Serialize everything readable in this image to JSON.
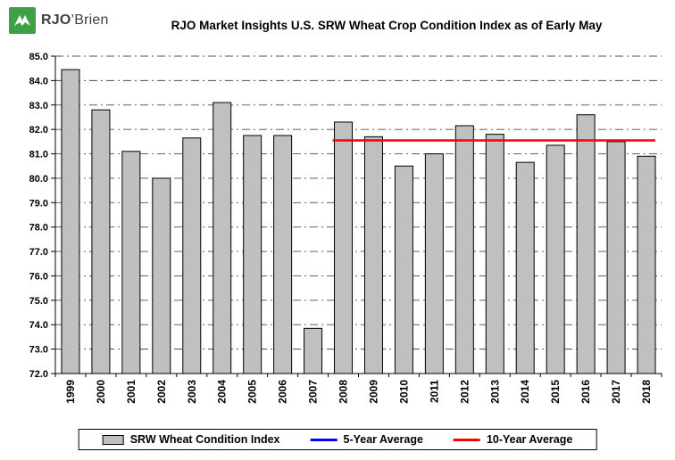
{
  "logo": {
    "brand_prefix": "RJO",
    "brand_suffix": "’Brien",
    "green": "#3fa047"
  },
  "chart_data": {
    "type": "bar",
    "title": "RJO Market Insights U.S. SRW Wheat Crop Condition Index as of Early May",
    "categories": [
      "1999",
      "2000",
      "2001",
      "2002",
      "2003",
      "2004",
      "2005",
      "2006",
      "2007",
      "2008",
      "2009",
      "2010",
      "2011",
      "2012",
      "2013",
      "2014",
      "2015",
      "2016",
      "2017",
      "2018"
    ],
    "values": [
      84.45,
      82.8,
      81.1,
      80.0,
      81.65,
      83.1,
      81.75,
      81.75,
      73.85,
      82.3,
      81.7,
      80.5,
      81.0,
      82.15,
      81.8,
      80.65,
      81.35,
      82.6,
      81.5,
      80.9
    ],
    "ylim": [
      72.0,
      85.0
    ],
    "ytick_step": 1.0,
    "ytick_decimals": 1,
    "grid": "horizontal dash-dot",
    "grid_color": "#4d4d4d",
    "bar_color": "#c0c0c0",
    "bar_border_color": "#000000",
    "lines": [
      {
        "name": "10-Year Average",
        "color": "#ff0000",
        "value": 81.55,
        "span_categories": [
          "2008",
          "2018"
        ]
      }
    ],
    "legend": {
      "position": "bottom",
      "entries": [
        {
          "label": "SRW Wheat Condition Index",
          "type": "bar",
          "color": "#c0c0c0"
        },
        {
          "label": "5-Year Average",
          "type": "line",
          "color": "#0000ff"
        },
        {
          "label": "10-Year Average",
          "type": "line",
          "color": "#ff0000"
        }
      ]
    }
  }
}
